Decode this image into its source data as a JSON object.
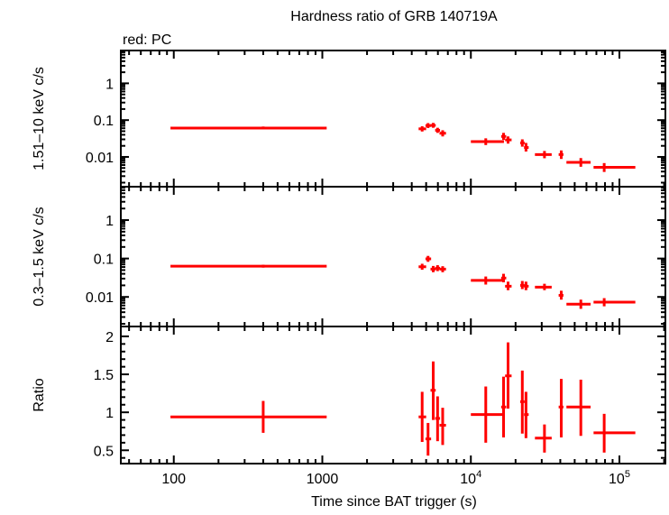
{
  "chart_data": {
    "type": "scatter",
    "title": "Hardness ratio of GRB 140719A",
    "legend_note": "red: PC",
    "xlabel": "Time since BAT trigger (s)",
    "xscale": "log",
    "xlim": [
      44,
      204000
    ],
    "x_ticks": [
      {
        "value": 100,
        "label": "100"
      },
      {
        "value": 1000,
        "label": "1000"
      },
      {
        "value": 10000,
        "label": "10",
        "sup": "4"
      },
      {
        "value": 100000,
        "label": "10",
        "sup": "5"
      }
    ],
    "series_color": "#ff0000",
    "panels": [
      {
        "name": "hard-band",
        "ylabel": "1.51–10 keV c/s",
        "yscale": "log",
        "ylim": [
          0.00155,
          7.8
        ],
        "y_ticks": [
          {
            "value": 1,
            "label": "1"
          },
          {
            "value": 0.1,
            "label": "0.1"
          },
          {
            "value": 0.01,
            "label": "0.01"
          }
        ],
        "points": [
          [
            400,
            95,
            1070,
            0.061,
            0.056,
            0.067
          ],
          [
            4700,
            4450,
            5000,
            0.058,
            0.049,
            0.068
          ],
          [
            5150,
            4950,
            5400,
            0.071,
            0.061,
            0.083
          ],
          [
            5580,
            5350,
            5800,
            0.072,
            0.062,
            0.084
          ],
          [
            5970,
            5750,
            6200,
            0.053,
            0.045,
            0.062
          ],
          [
            6460,
            6150,
            6800,
            0.044,
            0.036,
            0.053
          ],
          [
            12600,
            10000,
            16700,
            0.026,
            0.021,
            0.032
          ],
          [
            16600,
            16000,
            17300,
            0.036,
            0.029,
            0.045
          ],
          [
            17800,
            17000,
            18800,
            0.029,
            0.023,
            0.036
          ],
          [
            22200,
            21500,
            23000,
            0.024,
            0.019,
            0.03
          ],
          [
            23500,
            22800,
            24500,
            0.018,
            0.014,
            0.024
          ],
          [
            31300,
            27000,
            35000,
            0.0116,
            0.0092,
            0.0145
          ],
          [
            40600,
            39000,
            42000,
            0.0116,
            0.0088,
            0.015
          ],
          [
            55000,
            44000,
            64000,
            0.0071,
            0.0054,
            0.0093
          ],
          [
            79000,
            67000,
            128000,
            0.0052,
            0.0039,
            0.0068
          ]
        ]
      },
      {
        "name": "soft-band",
        "ylabel": "0.3–1.5 keV c/s",
        "yscale": "log",
        "ylim": [
          0.0017,
          7.4
        ],
        "y_ticks": [
          {
            "value": 1,
            "label": "1"
          },
          {
            "value": 0.1,
            "label": "0.1"
          },
          {
            "value": 0.01,
            "label": "0.01"
          }
        ],
        "points": [
          [
            400,
            95,
            1070,
            0.063,
            0.058,
            0.069
          ],
          [
            4700,
            4450,
            5000,
            0.061,
            0.051,
            0.073
          ],
          [
            5150,
            4950,
            5400,
            0.098,
            0.082,
            0.117
          ],
          [
            5580,
            5350,
            5800,
            0.053,
            0.044,
            0.064
          ],
          [
            5970,
            5750,
            6200,
            0.056,
            0.047,
            0.067
          ],
          [
            6460,
            6150,
            6800,
            0.053,
            0.044,
            0.063
          ],
          [
            12600,
            10000,
            16700,
            0.027,
            0.021,
            0.034
          ],
          [
            16600,
            16000,
            17300,
            0.031,
            0.024,
            0.04
          ],
          [
            17800,
            17000,
            18800,
            0.019,
            0.015,
            0.025
          ],
          [
            22200,
            21500,
            23000,
            0.02,
            0.016,
            0.026
          ],
          [
            23500,
            22800,
            24500,
            0.019,
            0.015,
            0.025
          ],
          [
            31300,
            27000,
            35000,
            0.018,
            0.015,
            0.022
          ],
          [
            40600,
            39000,
            42000,
            0.011,
            0.0085,
            0.0145
          ],
          [
            55000,
            44000,
            64000,
            0.0065,
            0.0049,
            0.0085
          ],
          [
            79000,
            67000,
            128000,
            0.0073,
            0.0057,
            0.0093
          ]
        ]
      },
      {
        "name": "ratio",
        "ylabel": "Ratio",
        "yscale": "linear",
        "ylim": [
          0.325,
          2.13
        ],
        "y_ticks": [
          {
            "value": 2,
            "label": "2"
          },
          {
            "value": 1.5,
            "label": "1.5"
          },
          {
            "value": 1,
            "label": "1"
          },
          {
            "value": 0.5,
            "label": "0.5"
          }
        ],
        "points": [
          [
            400,
            95,
            1070,
            0.94,
            0.73,
            1.15
          ],
          [
            4700,
            4450,
            5000,
            0.94,
            0.61,
            1.27
          ],
          [
            5150,
            4950,
            5400,
            0.65,
            0.43,
            0.86
          ],
          [
            5580,
            5350,
            5800,
            1.29,
            0.9,
            1.67
          ],
          [
            5970,
            5750,
            6200,
            0.92,
            0.62,
            1.21
          ],
          [
            6460,
            6150,
            6800,
            0.83,
            0.57,
            1.06
          ],
          [
            12600,
            10000,
            16700,
            0.97,
            0.6,
            1.34
          ],
          [
            16600,
            16000,
            17300,
            1.07,
            0.67,
            1.47
          ],
          [
            17800,
            17000,
            18800,
            1.48,
            1.05,
            1.92
          ],
          [
            22200,
            21500,
            23000,
            1.14,
            0.72,
            1.55
          ],
          [
            23500,
            22800,
            24500,
            0.97,
            0.66,
            1.27
          ],
          [
            31300,
            27000,
            35000,
            0.66,
            0.47,
            0.84
          ],
          [
            40600,
            39000,
            42000,
            1.07,
            0.67,
            1.44
          ],
          [
            55000,
            44000,
            64000,
            1.07,
            0.69,
            1.43
          ],
          [
            79000,
            67000,
            128000,
            0.73,
            0.47,
            0.98
          ]
        ]
      }
    ]
  }
}
